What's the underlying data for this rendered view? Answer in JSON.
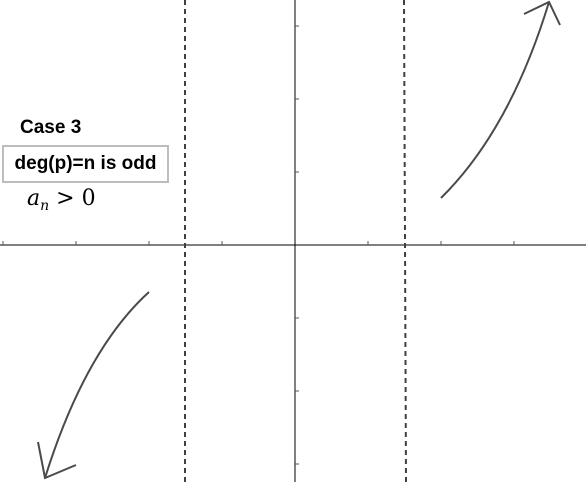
{
  "annotation": {
    "case_label": "Case 3",
    "degree_condition": "deg(p)=n is odd",
    "coefficient_symbol": "a",
    "coefficient_subscript": "n",
    "coefficient_relation": " > 0"
  },
  "colors": {
    "axis": "#000000",
    "tick": "#555555",
    "asymptote": "#404040",
    "curve": "#4a4a4a",
    "box_border": "#bdbdbd"
  },
  "graph": {
    "asymptotes": [
      "left-vertical-asymptote",
      "right-vertical-asymptote"
    ],
    "curves": [
      {
        "name": "right-end-behavior-curve",
        "direction": "up-right",
        "arrowhead": "arrow-up-icon"
      },
      {
        "name": "left-end-behavior-curve",
        "direction": "down-left",
        "arrowhead": "arrow-down-icon"
      }
    ]
  }
}
